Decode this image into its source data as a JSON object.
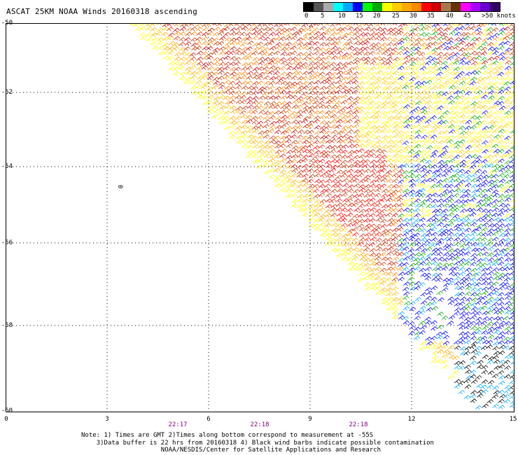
{
  "title": "ASCAT 25KM NOAA Winds 20160318 ascending",
  "legend": {
    "labels": [
      "0",
      "5",
      "10",
      "15",
      "20",
      "25",
      "30",
      "35",
      "40",
      "45",
      ">50 knots"
    ],
    "colors": [
      "#000000",
      "#555555",
      "#aaaaaa",
      "#00ffff",
      "#00aaff",
      "#0000ff",
      "#00ff00",
      "#00aa00",
      "#ffff00",
      "#ffcc00",
      "#ffaa00",
      "#ff8800",
      "#ff0000",
      "#cc0000",
      "#aa7755",
      "#663300",
      "#ff00ff",
      "#aa00ff",
      "#6600cc",
      "#330066"
    ]
  },
  "map": {
    "lat_labels": [
      "-50",
      "-52",
      "-54",
      "-56",
      "-58",
      "-60"
    ],
    "lon_labels": [
      "0",
      "3",
      "6",
      "9",
      "12",
      "15"
    ],
    "time_labels": [
      "22:17",
      "22:18",
      "22:18"
    ],
    "low_marker": "0"
  },
  "notes": {
    "line1": "Note: 1) Times are GMT 2)Times along bottom correspond to measurement at -55S",
    "line2": "3)Data buffer is 22 hrs from 20160318 4) Black wind barbs indicate possible contamination",
    "line3": "NOAA/NESDIS/Center for Satellite Applications and Research"
  }
}
